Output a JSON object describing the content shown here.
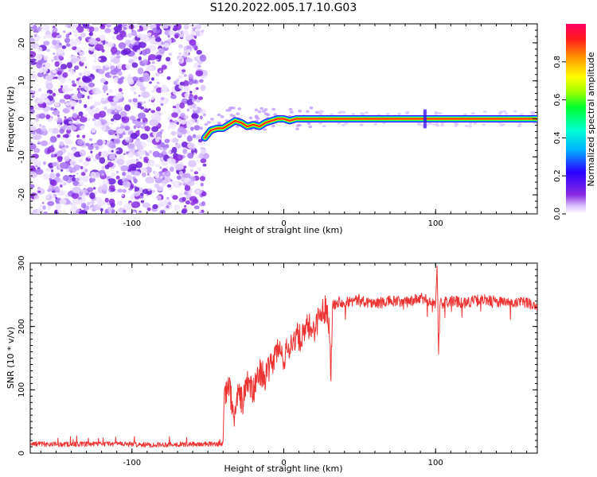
{
  "figure": {
    "title": "S120.2022.005.17.10.G03"
  },
  "colors": {
    "snr_line": "#ee3333",
    "noise_dot": "#8a2be2",
    "axis": "#000000"
  },
  "chart_data": [
    {
      "type": "heatmap",
      "xlabel": "Height of straight line (km)",
      "ylabel": "Frequency (Hz)",
      "xlim": [
        -167,
        167
      ],
      "ylim": [
        -25,
        25
      ],
      "x_ticks": [
        -100,
        0,
        100
      ],
      "y_ticks": [
        -20,
        -10,
        0,
        10,
        20
      ],
      "colorbar": {
        "label": "Normalized spectral amplitude",
        "range": [
          0,
          1
        ],
        "ticks": [
          0.0,
          0.2,
          0.4,
          0.6,
          0.8
        ],
        "tick_labels": [
          "0.0",
          "0.2",
          "0.4",
          "0.6",
          "0.8"
        ]
      },
      "noise_region_x": [
        -167,
        -52
      ],
      "signal_track": {
        "x": [
          -52,
          -48,
          -44,
          -40,
          -36,
          -32,
          -28,
          -24,
          -20,
          -16,
          -12,
          -8,
          -4,
          0,
          4,
          8,
          12,
          16,
          20,
          22,
          100,
          167
        ],
        "y": [
          -5,
          -3,
          -2.5,
          -2.5,
          -1.5,
          -0.5,
          -1,
          -2,
          -1.5,
          -2,
          -1,
          -0.5,
          0,
          0,
          -0.5,
          0,
          0,
          0,
          0,
          0,
          0,
          0
        ]
      }
    },
    {
      "type": "line",
      "xlabel": "Height of straight line (km)",
      "ylabel": "SNR (10 * v/v)",
      "xlim": [
        -167,
        167
      ],
      "ylim": [
        0,
        300
      ],
      "x_ticks": [
        -100,
        0,
        100
      ],
      "y_ticks": [
        0,
        100,
        200,
        300
      ],
      "series": [
        {
          "x": [
            -167,
            -150,
            -130,
            -110,
            -90,
            -70,
            -50,
            -40,
            -39,
            -36,
            -33,
            -30,
            -27,
            -24,
            -20,
            -16,
            -12,
            -8,
            -4,
            0,
            4,
            8,
            12,
            16,
            20,
            24,
            28,
            30,
            31,
            32,
            36,
            40,
            50,
            60,
            70,
            80,
            90,
            100,
            101,
            102,
            103,
            110,
            120,
            130,
            140,
            150,
            160,
            167
          ],
          "y": [
            15,
            14,
            14,
            15,
            13,
            14,
            14,
            15,
            85,
            110,
            55,
            95,
            80,
            115,
            95,
            130,
            120,
            140,
            165,
            150,
            170,
            185,
            180,
            200,
            195,
            220,
            230,
            205,
            125,
            232,
            240,
            238,
            242,
            236,
            240,
            238,
            244,
            238,
            290,
            160,
            236,
            240,
            238,
            242,
            240,
            236,
            238,
            232
          ]
        }
      ]
    }
  ]
}
